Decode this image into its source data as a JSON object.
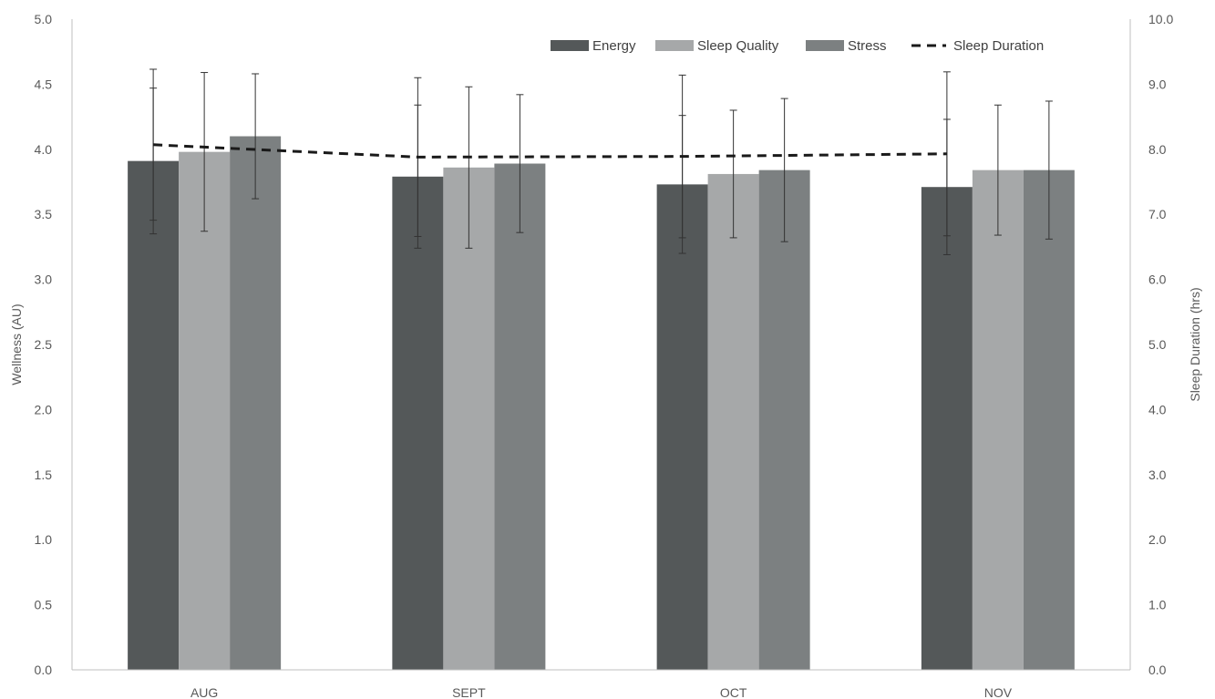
{
  "chart_data": {
    "type": "bar",
    "title": "",
    "categories": [
      "AUG",
      "SEPT",
      "OCT",
      "NOV"
    ],
    "y_left": {
      "label": "Wellness (AU)",
      "range": [
        0,
        5
      ],
      "ticks": [
        "0.0",
        "0.5",
        "1.0",
        "1.5",
        "2.0",
        "2.5",
        "3.0",
        "3.5",
        "4.0",
        "4.5",
        "5.0"
      ]
    },
    "y_right": {
      "label": "Sleep Duration (hrs)",
      "range": [
        0,
        10
      ],
      "ticks": [
        "0.0",
        "1.0",
        "2.0",
        "3.0",
        "4.0",
        "5.0",
        "6.0",
        "7.0",
        "8.0",
        "9.0",
        "10.0"
      ]
    },
    "series": [
      {
        "name": "Energy",
        "type": "bar",
        "axis": "left",
        "color": "#545859",
        "values": [
          3.91,
          3.79,
          3.73,
          3.71
        ],
        "error": [
          0.56,
          0.55,
          0.53,
          0.52
        ]
      },
      {
        "name": "Sleep Quality",
        "type": "bar",
        "axis": "left",
        "color": "#a6a8a9",
        "values": [
          3.98,
          3.86,
          3.81,
          3.84
        ],
        "error": [
          0.61,
          0.62,
          0.49,
          0.5
        ]
      },
      {
        "name": "Stress",
        "type": "bar",
        "axis": "left",
        "color": "#7c8081",
        "values": [
          4.1,
          3.89,
          3.84,
          3.84
        ],
        "error": [
          0.48,
          0.53,
          0.55,
          0.53
        ]
      },
      {
        "name": "Sleep Duration",
        "type": "line",
        "axis": "right",
        "color": "#1a1a1a",
        "dash": "dashed",
        "values": [
          8.07,
          7.88,
          7.89,
          7.93
        ],
        "error": [
          1.16,
          1.22,
          1.25,
          1.26
        ]
      }
    ],
    "legend": {
      "position": "top-right"
    },
    "grid": false
  }
}
